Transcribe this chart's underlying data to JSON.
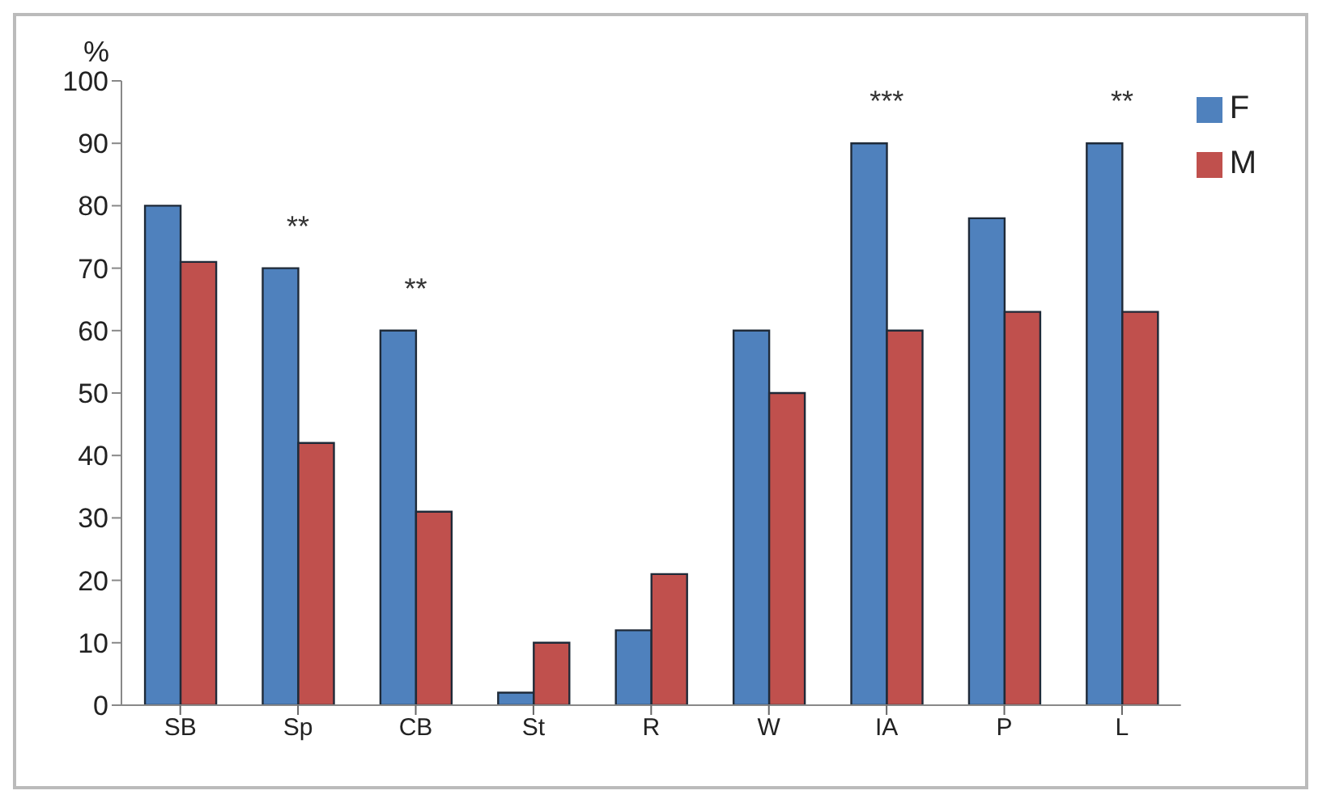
{
  "chart_data": {
    "type": "bar",
    "ylabel": "%",
    "categories": [
      "SB",
      "Sp",
      "CB",
      "St",
      "R",
      "W",
      "IA",
      "P",
      "L"
    ],
    "series": [
      {
        "name": "F",
        "color": "#4f81bd",
        "values": [
          80,
          70,
          60,
          2,
          12,
          60,
          90,
          78,
          90
        ]
      },
      {
        "name": "M",
        "color": "#c0504d",
        "values": [
          71,
          42,
          31,
          10,
          21,
          50,
          60,
          63,
          63
        ]
      }
    ],
    "ylim": [
      0,
      100
    ],
    "yticks": [
      0,
      10,
      20,
      30,
      40,
      50,
      60,
      70,
      80,
      90,
      100
    ],
    "grid": false,
    "legend": "top right",
    "annotations": [
      {
        "text": "**",
        "x": "Sp",
        "y": 70
      },
      {
        "text": "**",
        "x": "CB",
        "y": 60
      },
      {
        "text": "***",
        "x": "IA",
        "y": 90
      },
      {
        "text": "**",
        "x": "L",
        "y": 90
      }
    ]
  }
}
